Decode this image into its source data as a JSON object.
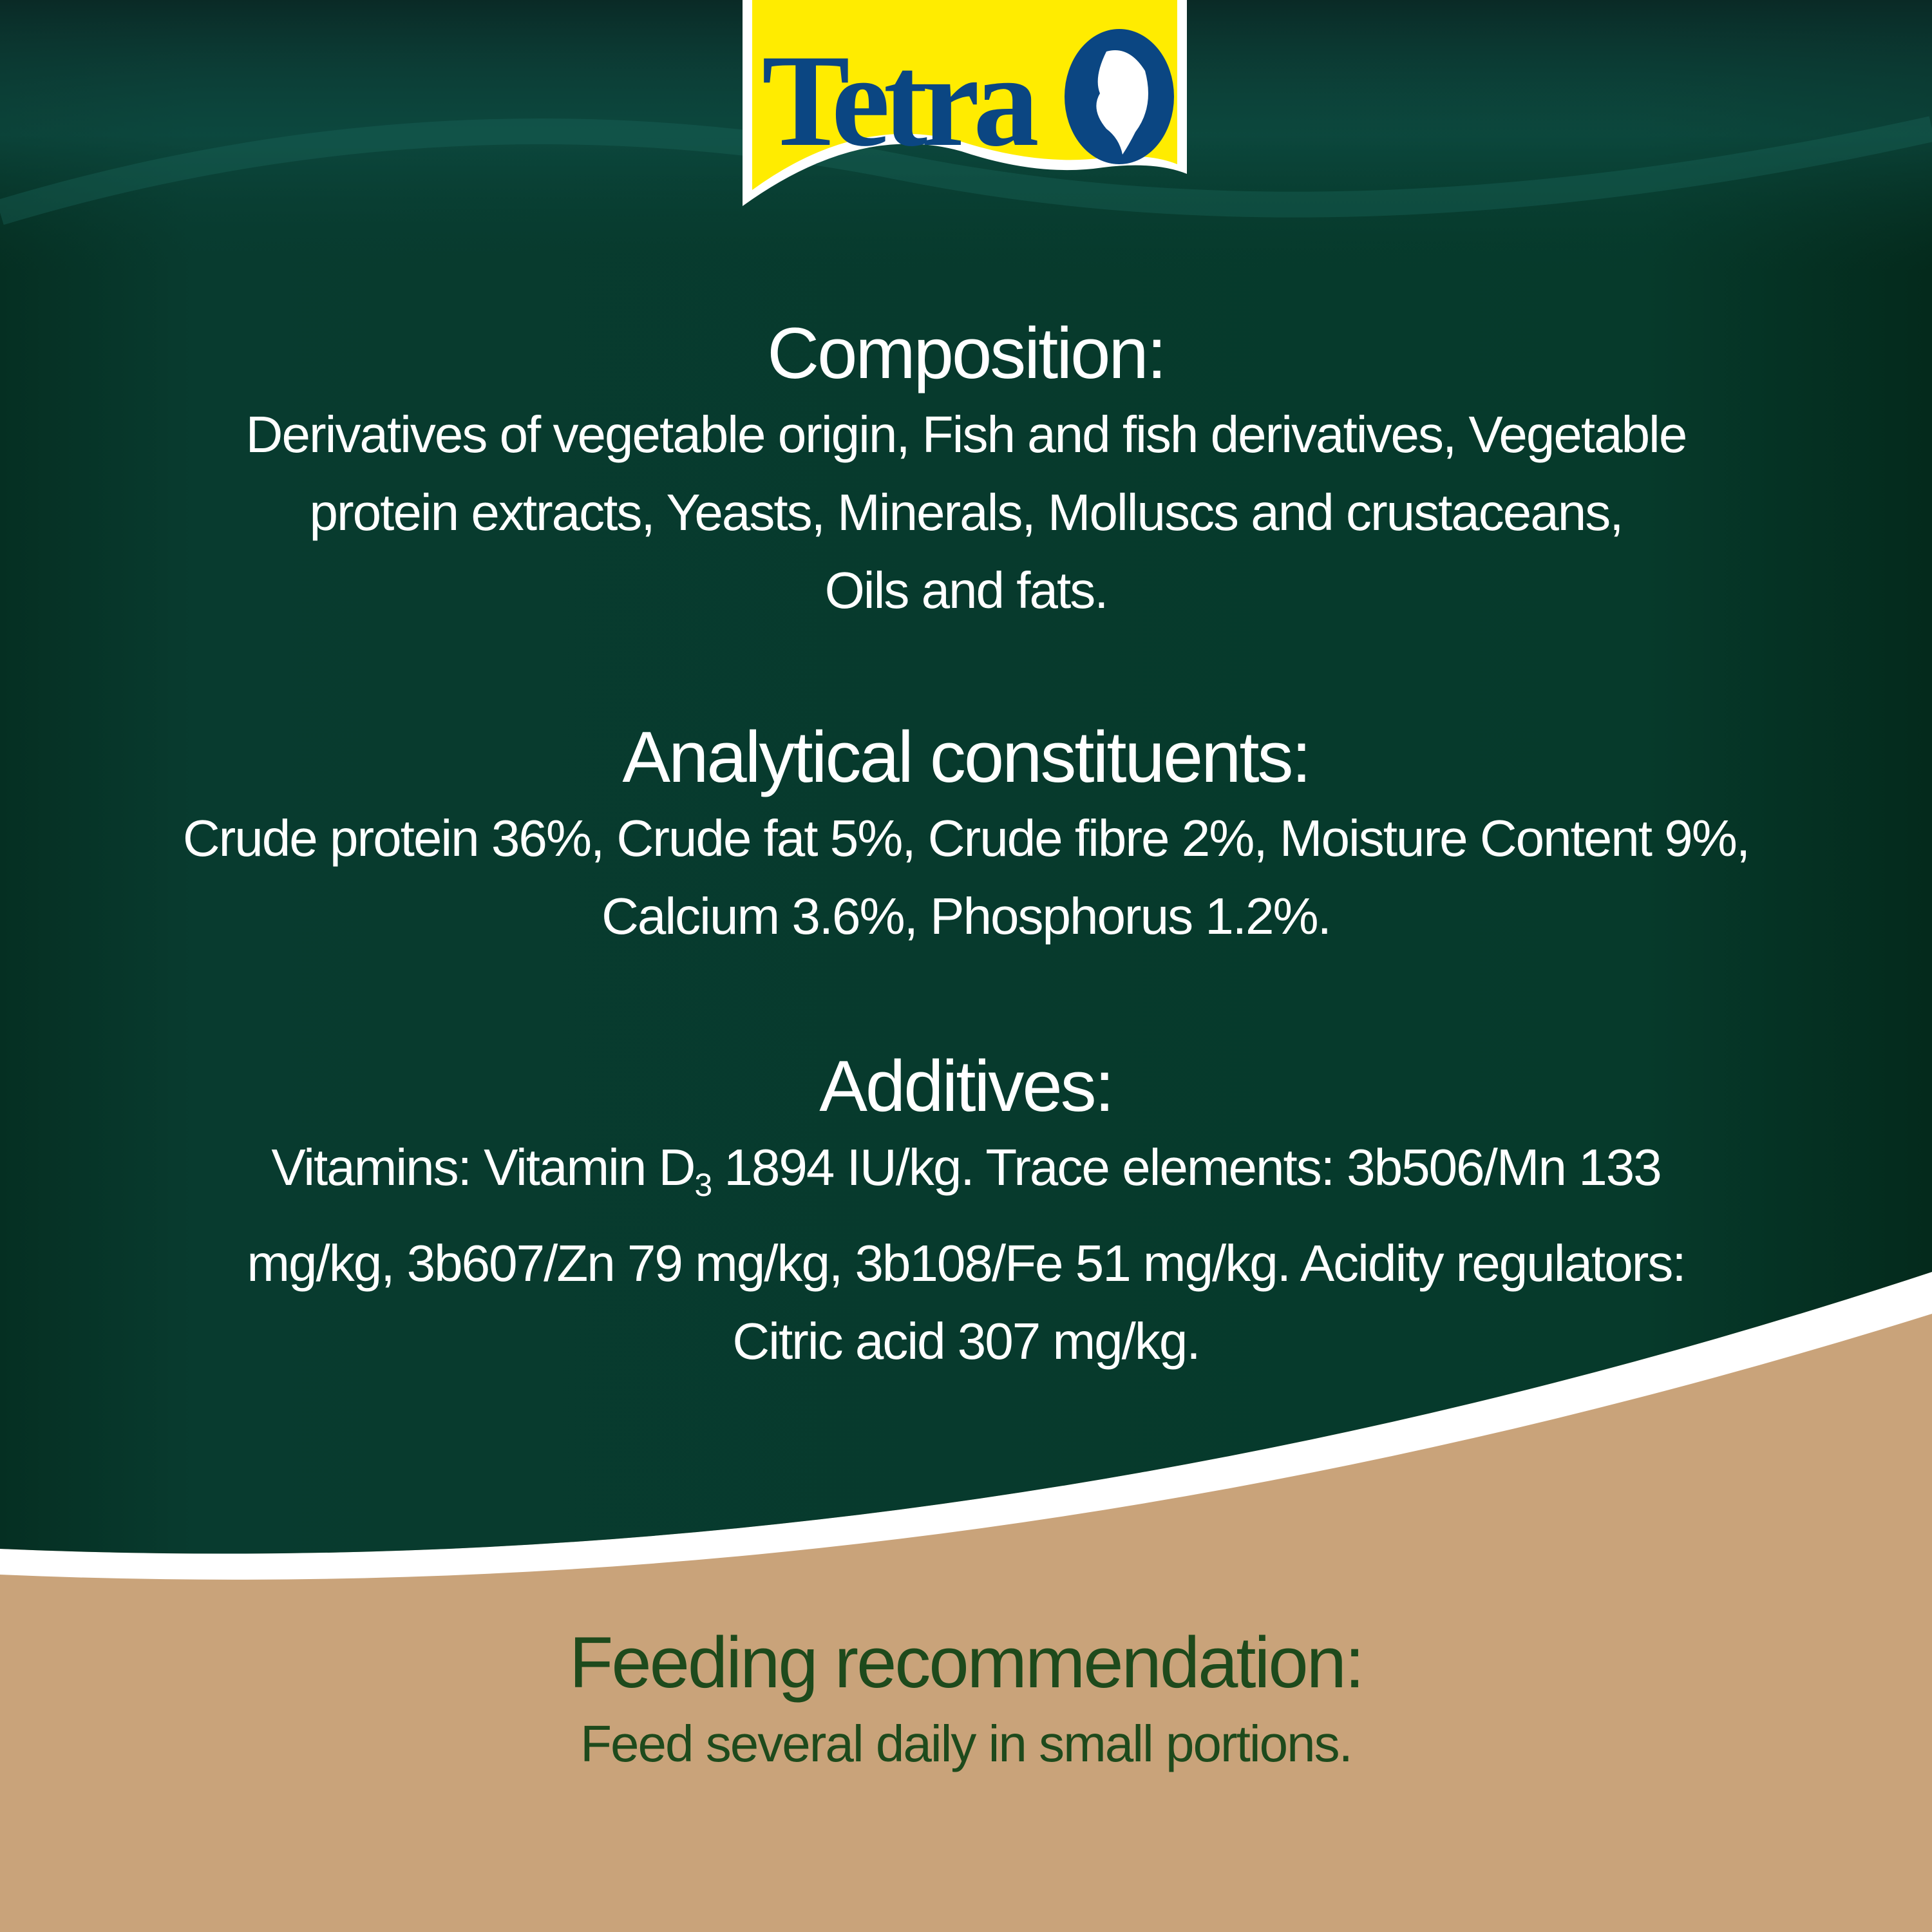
{
  "brand": {
    "name": "Tetra",
    "logo_bg": "#ffec00",
    "logo_text_color": "#0b4682"
  },
  "colors": {
    "green_bg": "#073a2e",
    "kraft_bg": "#c9a37a",
    "feeding_text": "#1e4a1c"
  },
  "composition": {
    "title": "Composition:",
    "lines": [
      "Derivatives of vegetable origin, Fish and fish derivatives, Vegetable",
      "protein extracts, Yeasts, Minerals, Molluscs and crustaceans,",
      "Oils and fats."
    ]
  },
  "analytical": {
    "title": "Analytical constituents:",
    "lines": [
      "Crude protein 36%, Crude fat 5%, Crude fibre 2%, Moisture Content 9%,",
      "Calcium 3.6%, Phosphorus 1.2%."
    ]
  },
  "additives": {
    "title": "Additives:",
    "line1_a": "Vitamins: Vitamin D",
    "line1_sub": "3",
    "line1_b": " 1894 IU/kg. Trace elements: 3b506/Mn 133",
    "line2": "mg/kg, 3b607/Zn 79 mg/kg, 3b108/Fe 51 mg/kg. Acidity regulators:",
    "line3": "Citric acid 307 mg/kg."
  },
  "feeding": {
    "title": "Feeding recommendation:",
    "text": "Feed several daily in small portions."
  }
}
